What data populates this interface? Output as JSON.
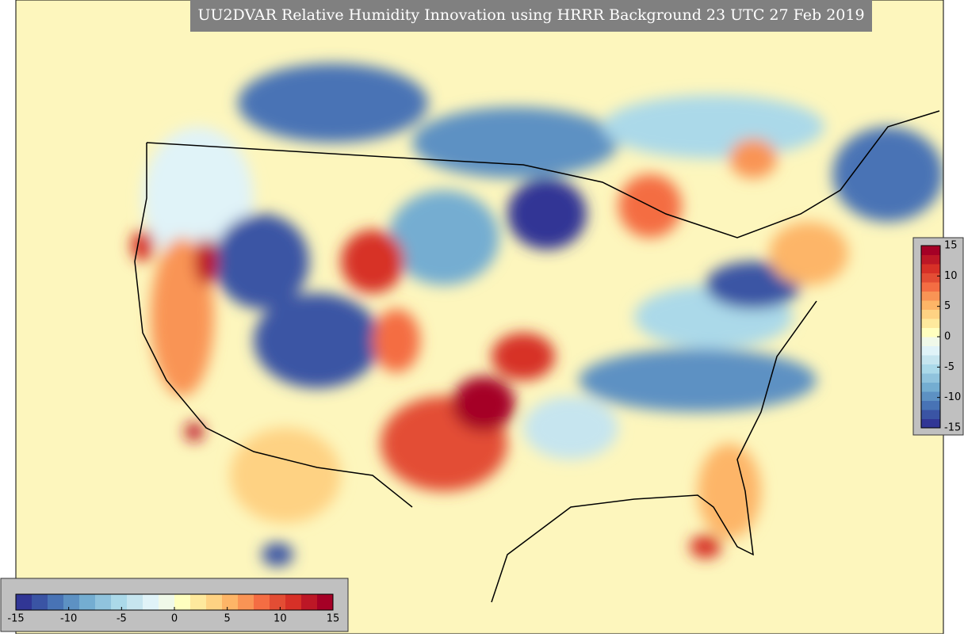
{
  "title": "UU2DVAR Relative Humidity Innovation using HRRR Background 23 UTC 27 Feb 2019",
  "horizontal_colorbar": {
    "range": [
      -15,
      15
    ],
    "ticks": [
      -15,
      -10,
      -5,
      0,
      5,
      10,
      15
    ]
  },
  "vertical_colorbar": {
    "range": [
      -15,
      15
    ],
    "ticks": [
      15,
      10,
      5,
      0,
      -5,
      -10,
      -15
    ]
  },
  "colors": [
    "#313695",
    "#3a54a4",
    "#4873b5",
    "#5d91c3",
    "#74add1",
    "#90c3dd",
    "#abd9e9",
    "#c6e5ef",
    "#e0f3f8",
    "#f0f9e9",
    "#ffffbf",
    "#fee99d",
    "#fed283",
    "#fdb567",
    "#f99455",
    "#f46d43",
    "#e34d34",
    "#d73027",
    "#bd1726",
    "#a50026"
  ]
}
